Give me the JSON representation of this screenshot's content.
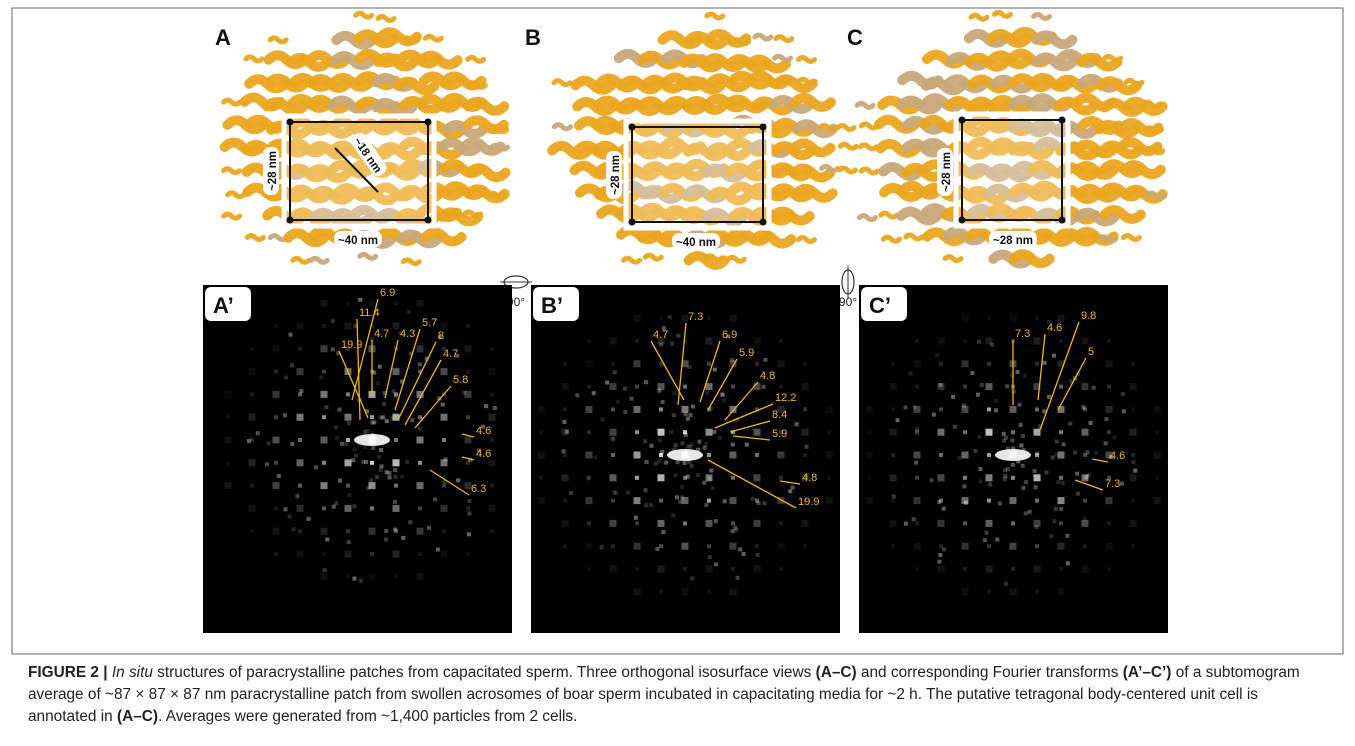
{
  "figure": {
    "panels": [
      {
        "label": "A",
        "annotations": [
          "~28 nm",
          "~18 nm",
          "~40 nm"
        ]
      },
      {
        "label": "B",
        "annotations": [
          "~28 nm",
          "~40 nm"
        ]
      },
      {
        "label": "C",
        "annotations": [
          "~28 nm",
          "~28 nm"
        ]
      }
    ],
    "rotations": [
      "90°",
      "90°"
    ],
    "fft_panels": [
      {
        "label": "A’",
        "labels": [
          "6.9",
          "11.4",
          "4.7",
          "4.3",
          "5.7",
          "8",
          "4.7",
          "19.9",
          "5.8",
          "4.6",
          "4.6",
          "6.3"
        ]
      },
      {
        "label": "B’",
        "labels": [
          "7.3",
          "4.7",
          "6.9",
          "5.9",
          "4.8",
          "12.2",
          "8.4",
          "5.9",
          "4.8",
          "19.9"
        ]
      },
      {
        "label": "C’",
        "labels": [
          "7.3",
          "4.6",
          "9.8",
          "5",
          "4.6",
          "7.3"
        ]
      }
    ]
  },
  "caption": {
    "parts": [
      {
        "text": "FIGURE 2 | ",
        "style": "bold"
      },
      {
        "text": "In situ",
        "style": "italic"
      },
      {
        "text": " structures of paracrystalline patches from capacitated sperm. Three orthogonal isosurface views ",
        "style": "normal"
      },
      {
        "text": "(A–C)",
        "style": "bold"
      },
      {
        "text": " and corresponding Fourier transforms ",
        "style": "normal"
      },
      {
        "text": "(A’–C’)",
        "style": "bold"
      },
      {
        "text": " of a subtomogram average of ~87 × 87 × 87 nm paracrystalline patch from swollen acrosomes of boar sperm incubated in capacitating media for ~2 h. The putative tetragonal body-centered unit cell is annotated in ",
        "style": "normal"
      },
      {
        "text": "(A–C)",
        "style": "bold"
      },
      {
        "text": ". Averages were generated from ~1,400 particles from 2 cells.",
        "style": "normal"
      }
    ]
  }
}
